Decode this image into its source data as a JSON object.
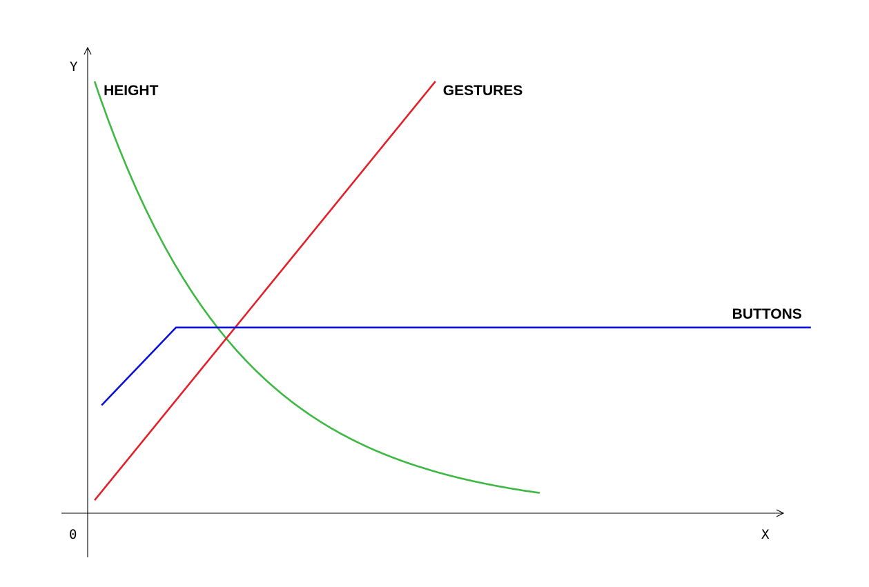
{
  "chart_data": {
    "type": "line",
    "title": "",
    "xlabel": "X",
    "ylabel": "Y",
    "origin_label": "0",
    "xlim": [
      0,
      100
    ],
    "ylim": [
      0,
      100
    ],
    "grid": false,
    "legend": "inline labels at line ends",
    "series": [
      {
        "name": "HEIGHT",
        "color": "#3cb843",
        "kind": "decay",
        "x": [
          1,
          3,
          6,
          10,
          15,
          20,
          25,
          30,
          35,
          40,
          45,
          50,
          55,
          60,
          65
        ],
        "y": [
          100,
          87.7,
          75.2,
          62.3,
          49.4,
          39.1,
          30.9,
          24.5,
          19.3,
          15.3,
          12.1,
          9.5,
          7.5,
          5.9,
          4.7
        ]
      },
      {
        "name": "GESTURES",
        "color": "#e3202a",
        "kind": "linear",
        "x": [
          1,
          50
        ],
        "y": [
          3,
          100
        ]
      },
      {
        "name": "BUTTONS",
        "color": "#0a10d8",
        "kind": "piecewise",
        "x": [
          2,
          12.7,
          104
        ],
        "y": [
          25,
          43,
          43
        ]
      }
    ]
  }
}
